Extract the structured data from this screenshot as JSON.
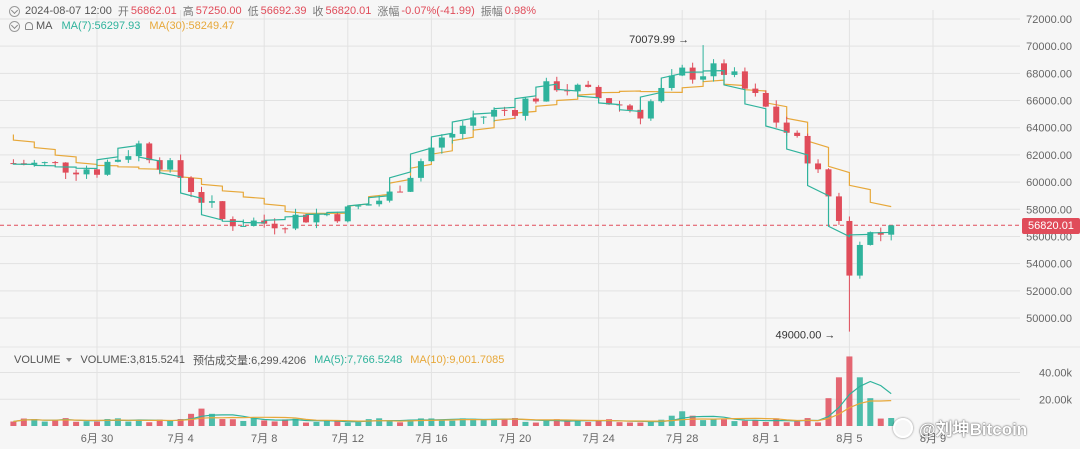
{
  "header": {
    "datetime": "2024-08-07 12:00",
    "open_label": "开",
    "open": "56862.01",
    "high_label": "高",
    "high": "57250.00",
    "low_label": "低",
    "low": "56692.39",
    "close_label": "收",
    "close": "56820.01",
    "change_label": "涨幅",
    "change": "-0.07%(-41.99)",
    "amplitude_label": "振幅",
    "amplitude": "0.98%"
  },
  "ma_legend": {
    "label": "MA",
    "ma7": "MA(7):56297.93",
    "ma30": "MA(30):58249.47"
  },
  "volume_legend": {
    "label": "VOLUME",
    "volume": "VOLUME:3,815.5241",
    "predicted": "预估成交量:6,299.4206",
    "ma5": "MA(5):7,766.5248",
    "ma10": "MA(10):9,001.7085"
  },
  "current_price_tag": "56820.01",
  "watermark": "@刘坤Bitcoin",
  "colors": {
    "up": "#2fb39c",
    "down": "#e04c5a",
    "ma7": "#2fb39c",
    "ma30": "#e7a83a",
    "grid": "#e2e2e2",
    "background": "#f6f6f6"
  },
  "chart_data": [
    {
      "type": "candlestick",
      "title": "",
      "interval": "12h",
      "x_range": [
        "2024-06-26",
        "2024-08-07"
      ],
      "x_tick_labels": [
        "6月 30",
        "7月 4",
        "7月 8",
        "7月 12",
        "7月 16",
        "7月 20",
        "7月 24",
        "7月 28",
        "8月 1",
        "8月 5",
        "8月 9"
      ],
      "y_tick_labels": [
        "72000.00",
        "70000.00",
        "68000.00",
        "66000.00",
        "64000.00",
        "62000.00",
        "60000.00",
        "58000.00",
        "56000.00",
        "54000.00",
        "52000.00",
        "50000.00"
      ],
      "ylim": [
        49000,
        72000
      ],
      "annotations": [
        {
          "text": "70079.99",
          "date": "2024-07-29",
          "value": 70079.99
        },
        {
          "text": "49000.00",
          "date": "2024-08-05",
          "value": 49000.0
        }
      ],
      "last_close": 56820.01,
      "ma7_approx": [
        [
          "2024-06-26",
          61400
        ],
        [
          "2024-06-30",
          61000
        ],
        [
          "2024-07-02",
          62700
        ],
        [
          "2024-07-04",
          60400
        ],
        [
          "2024-07-06",
          57200
        ],
        [
          "2024-07-08",
          57000
        ],
        [
          "2024-07-10",
          57500
        ],
        [
          "2024-07-12",
          57800
        ],
        [
          "2024-07-14",
          59000
        ],
        [
          "2024-07-16",
          62500
        ],
        [
          "2024-07-18",
          64700
        ],
        [
          "2024-07-20",
          65500
        ],
        [
          "2024-07-22",
          67200
        ],
        [
          "2024-07-24",
          66200
        ],
        [
          "2024-07-26",
          65200
        ],
        [
          "2024-07-28",
          68000
        ],
        [
          "2024-07-30",
          68200
        ],
        [
          "2024-08-01",
          65400
        ],
        [
          "2024-08-03",
          62000
        ],
        [
          "2024-08-05",
          56000
        ],
        [
          "2024-08-07",
          56300
        ]
      ],
      "ma30_approx": [
        [
          "2024-06-26",
          63500
        ],
        [
          "2024-06-30",
          61300
        ],
        [
          "2024-07-02",
          61100
        ],
        [
          "2024-07-04",
          60800
        ],
        [
          "2024-07-06",
          59700
        ],
        [
          "2024-07-08",
          58800
        ],
        [
          "2024-07-10",
          57700
        ],
        [
          "2024-07-12",
          57700
        ],
        [
          "2024-07-14",
          59100
        ],
        [
          "2024-07-16",
          61300
        ],
        [
          "2024-07-18",
          63300
        ],
        [
          "2024-07-20",
          64700
        ],
        [
          "2024-07-22",
          65700
        ],
        [
          "2024-07-24",
          66500
        ],
        [
          "2024-07-26",
          66700
        ],
        [
          "2024-07-28",
          66600
        ],
        [
          "2024-07-30",
          67500
        ],
        [
          "2024-08-01",
          66700
        ],
        [
          "2024-08-03",
          64400
        ],
        [
          "2024-08-05",
          60700
        ],
        [
          "2024-08-07",
          58200
        ]
      ],
      "grid": true,
      "axis_position": "right"
    },
    {
      "type": "bar",
      "title": "",
      "series_name": "VOLUME",
      "y_tick_labels": [
        "40.00k",
        "20.00k"
      ],
      "ylim": [
        0,
        50000
      ],
      "volume_peaks_approx": [
        [
          "2024-07-05",
          13000
        ],
        [
          "2024-07-28",
          11000
        ],
        [
          "2024-08-05",
          52000
        ],
        [
          "2024-08-07",
          3815.52
        ]
      ],
      "ma5_last": 7766.5248,
      "ma10_last": 9001.7085,
      "grid": true,
      "axis_position": "right"
    }
  ]
}
